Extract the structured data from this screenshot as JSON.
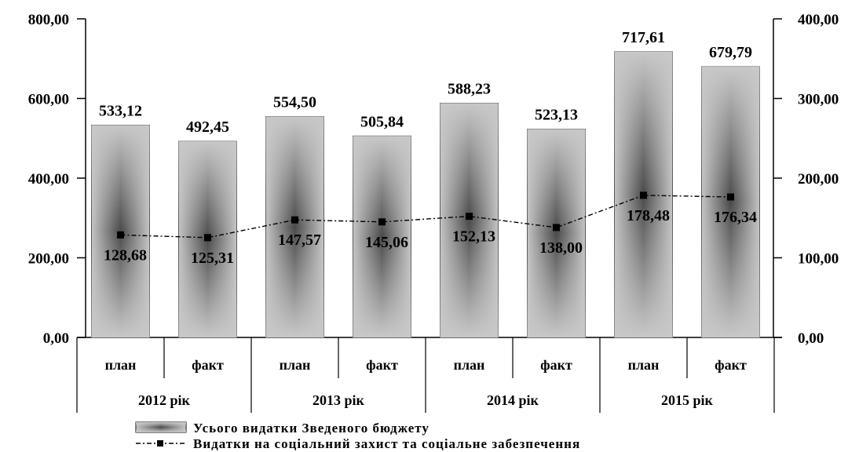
{
  "chart_data": {
    "type": "bar",
    "groups": [
      "2012 рік",
      "2013 рік",
      "2014 рік",
      "2015 рік"
    ],
    "categories": [
      "план",
      "факт",
      "план",
      "факт",
      "план",
      "факт",
      "план",
      "факт"
    ],
    "series": [
      {
        "name": "Усього видатки Зведеного бюджету",
        "type": "bar",
        "axis": "left",
        "values": [
          533.12,
          492.45,
          554.5,
          505.84,
          588.23,
          523.13,
          717.61,
          679.79
        ],
        "labels": [
          "533,12",
          "492,45",
          "554,50",
          "505,84",
          "588,23",
          "523,13",
          "717,61",
          "679,79"
        ]
      },
      {
        "name": "Видатки на соціальний захист та соціальне забезпечення",
        "type": "line",
        "axis": "right",
        "values": [
          128.68,
          125.31,
          147.57,
          145.06,
          152.13,
          138.0,
          178.48,
          176.34
        ],
        "labels": [
          "128,68",
          "125,31",
          "147,57",
          "145,06",
          "152,13",
          "138,00",
          "178,48",
          "176,34"
        ]
      }
    ],
    "ylim_left": [
      0,
      800
    ],
    "ylim_right": [
      0,
      400
    ],
    "yticks_left": [
      "0,00",
      "200,00",
      "400,00",
      "600,00",
      "800,00"
    ],
    "yticks_right": [
      "0,00",
      "100,00",
      "200,00",
      "300,00",
      "400,00"
    ],
    "legend_position": "bottom",
    "grid": false,
    "colors": {
      "bar_edge": "#5a5a5a",
      "bar_light": "#c8c8c8",
      "bar_dark": "#3c3c3c",
      "line": "#000000"
    }
  }
}
